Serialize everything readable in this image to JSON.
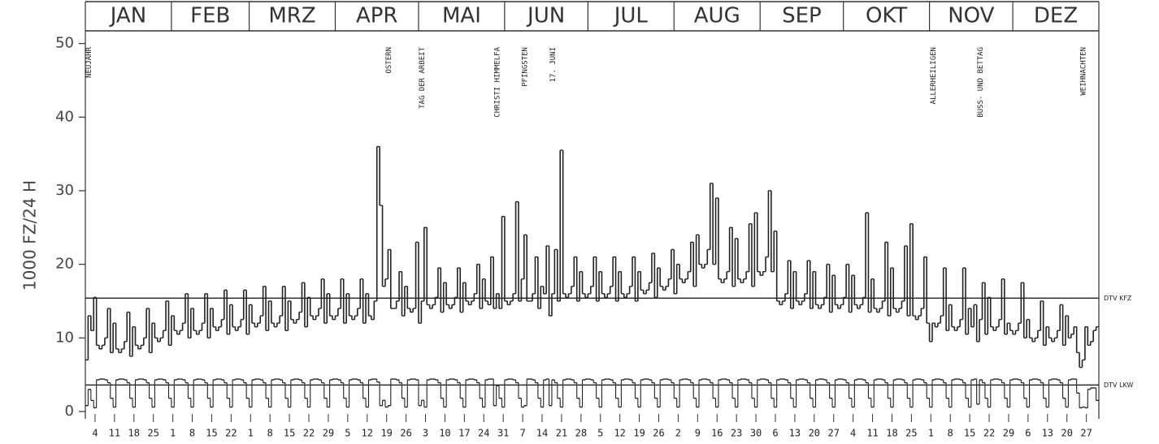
{
  "chart_data": {
    "type": "line",
    "step": true,
    "y_label": "1000 FZ/24 H",
    "xlim": [
      0,
      365
    ],
    "ylim": [
      -1,
      51.5
    ],
    "yticks": [
      0,
      10,
      20,
      30,
      40,
      50
    ],
    "xticks": [
      4,
      11,
      18,
      25,
      {
        "value": 32,
        "label": "1"
      },
      {
        "value": 39,
        "label": "8"
      },
      {
        "value": 46,
        "label": "15"
      },
      {
        "value": 53,
        "label": "22"
      },
      {
        "value": 60,
        "label": "1"
      },
      {
        "value": 67,
        "label": "8"
      },
      {
        "value": 74,
        "label": "15"
      },
      {
        "value": 81,
        "label": "22"
      },
      {
        "value": 88,
        "label": "29"
      },
      {
        "value": 95,
        "label": "5"
      },
      {
        "value": 102,
        "label": "12"
      },
      {
        "value": 109,
        "label": "19"
      },
      {
        "value": 116,
        "label": "26"
      },
      {
        "value": 123,
        "label": "3"
      },
      {
        "value": 130,
        "label": "10"
      },
      {
        "value": 137,
        "label": "17"
      },
      {
        "value": 144,
        "label": "24"
      },
      {
        "value": 151,
        "label": "31"
      },
      {
        "value": 158,
        "label": "7"
      },
      {
        "value": 165,
        "label": "14"
      },
      {
        "value": 172,
        "label": "21"
      },
      {
        "value": 179,
        "label": "28"
      },
      {
        "value": 186,
        "label": "5"
      },
      {
        "value": 193,
        "label": "12"
      },
      {
        "value": 200,
        "label": "19"
      },
      {
        "value": 207,
        "label": "26"
      },
      {
        "value": 214,
        "label": "2"
      },
      {
        "value": 221,
        "label": "9"
      },
      {
        "value": 228,
        "label": "16"
      },
      {
        "value": 235,
        "label": "23"
      },
      {
        "value": 242,
        "label": "30"
      },
      {
        "value": 249,
        "label": "6"
      },
      {
        "value": 256,
        "label": "13"
      },
      {
        "value": 263,
        "label": "20"
      },
      {
        "value": 270,
        "label": "27"
      },
      {
        "value": 277,
        "label": "4"
      },
      {
        "value": 284,
        "label": "11"
      },
      {
        "value": 291,
        "label": "18"
      },
      {
        "value": 298,
        "label": "25"
      },
      {
        "value": 305,
        "label": "1"
      },
      {
        "value": 312,
        "label": "8"
      },
      {
        "value": 319,
        "label": "15"
      },
      {
        "value": 326,
        "label": "22"
      },
      {
        "value": 333,
        "label": "29"
      },
      {
        "value": 340,
        "label": "6"
      },
      {
        "value": 347,
        "label": "13"
      },
      {
        "value": 354,
        "label": "20"
      },
      {
        "value": 361,
        "label": "27"
      }
    ],
    "months": [
      {
        "label": "JAN",
        "start": 0,
        "end": 31
      },
      {
        "label": "FEB",
        "start": 31,
        "end": 59
      },
      {
        "label": "MRZ",
        "start": 59,
        "end": 90
      },
      {
        "label": "APR",
        "start": 90,
        "end": 120
      },
      {
        "label": "MAI",
        "start": 120,
        "end": 151
      },
      {
        "label": "JUN",
        "start": 151,
        "end": 181
      },
      {
        "label": "JUL",
        "start": 181,
        "end": 212
      },
      {
        "label": "AUG",
        "start": 212,
        "end": 243
      },
      {
        "label": "SEP",
        "start": 243,
        "end": 273
      },
      {
        "label": "OKT",
        "start": 273,
        "end": 304
      },
      {
        "label": "NOV",
        "start": 304,
        "end": 334
      },
      {
        "label": "DEZ",
        "start": 334,
        "end": 365
      }
    ],
    "annotations": [
      {
        "text": "NEUJAHR",
        "x": 1
      },
      {
        "text": "OSTERN",
        "x": 109
      },
      {
        "text": "TAG DER ARBEIT",
        "x": 121
      },
      {
        "text": "CHRISTI HIMMELFA",
        "x": 148
      },
      {
        "text": "PFINGSTEN",
        "x": 158
      },
      {
        "text": "17. JUNI",
        "x": 168
      },
      {
        "text": "ALLERHEILIGEN",
        "x": 305
      },
      {
        "text": "BUSS- UND BETTAG",
        "x": 322
      },
      {
        "text": "WEIHNACHTEN",
        "x": 359
      }
    ],
    "reference_lines": [
      {
        "label": "DTV KFZ",
        "value": 15.4
      },
      {
        "label": "DTV LKW",
        "value": 3.6
      }
    ],
    "x": [
      1,
      2,
      3,
      4,
      5,
      6,
      7,
      8,
      9,
      10,
      11,
      12,
      13,
      14,
      15,
      16,
      17,
      18,
      19,
      20,
      21,
      22,
      23,
      24,
      25,
      26,
      27,
      28,
      29,
      30,
      31,
      32,
      33,
      34,
      35,
      36,
      37,
      38,
      39,
      40,
      41,
      42,
      43,
      44,
      45,
      46,
      47,
      48,
      49,
      50,
      51,
      52,
      53,
      54,
      55,
      56,
      57,
      58,
      59,
      60,
      61,
      62,
      63,
      64,
      65,
      66,
      67,
      68,
      69,
      70,
      71,
      72,
      73,
      74,
      75,
      76,
      77,
      78,
      79,
      80,
      81,
      82,
      83,
      84,
      85,
      86,
      87,
      88,
      89,
      90,
      91,
      92,
      93,
      94,
      95,
      96,
      97,
      98,
      99,
      100,
      101,
      102,
      103,
      104,
      105,
      106,
      107,
      108,
      109,
      110,
      111,
      112,
      113,
      114,
      115,
      116,
      117,
      118,
      119,
      120,
      121,
      122,
      123,
      124,
      125,
      126,
      127,
      128,
      129,
      130,
      131,
      132,
      133,
      134,
      135,
      136,
      137,
      138,
      139,
      140,
      141,
      142,
      143,
      144,
      145,
      146,
      147,
      148,
      149,
      150,
      151,
      152,
      153,
      154,
      155,
      156,
      157,
      158,
      159,
      160,
      161,
      162,
      163,
      164,
      165,
      166,
      167,
      168,
      169,
      170,
      171,
      172,
      173,
      174,
      175,
      176,
      177,
      178,
      179,
      180,
      181,
      182,
      183,
      184,
      185,
      186,
      187,
      188,
      189,
      190,
      191,
      192,
      193,
      194,
      195,
      196,
      197,
      198,
      199,
      200,
      201,
      202,
      203,
      204,
      205,
      206,
      207,
      208,
      209,
      210,
      211,
      212,
      213,
      214,
      215,
      216,
      217,
      218,
      219,
      220,
      221,
      222,
      223,
      224,
      225,
      226,
      227,
      228,
      229,
      230,
      231,
      232,
      233,
      234,
      235,
      236,
      237,
      238,
      239,
      240,
      241,
      242,
      243,
      244,
      245,
      246,
      247,
      248,
      249,
      250,
      251,
      252,
      253,
      254,
      255,
      256,
      257,
      258,
      259,
      260,
      261,
      262,
      263,
      264,
      265,
      266,
      267,
      268,
      269,
      270,
      271,
      272,
      273,
      274,
      275,
      276,
      277,
      278,
      279,
      280,
      281,
      282,
      283,
      284,
      285,
      286,
      287,
      288,
      289,
      290,
      291,
      292,
      293,
      294,
      295,
      296,
      297,
      298,
      299,
      300,
      301,
      302,
      303,
      304,
      305,
      306,
      307,
      308,
      309,
      310,
      311,
      312,
      313,
      314,
      315,
      316,
      317,
      318,
      319,
      320,
      321,
      322,
      323,
      324,
      325,
      326,
      327,
      328,
      329,
      330,
      331,
      332,
      333,
      334,
      335,
      336,
      337,
      338,
      339,
      340,
      341,
      342,
      343,
      344,
      345,
      346,
      347,
      348,
      349,
      350,
      351,
      352,
      353,
      354,
      355,
      356,
      357,
      358,
      359,
      360,
      361,
      362,
      363,
      364,
      365
    ],
    "series": [
      {
        "name": "KFZ",
        "color": "#222222",
        "values": [
          7,
          13,
          11,
          15.5,
          9,
          8.5,
          9,
          10,
          14,
          8,
          12,
          8.5,
          8,
          8.5,
          9.5,
          13.5,
          7.5,
          11.5,
          9,
          8.5,
          9,
          10,
          14,
          8,
          12,
          10,
          9.5,
          10,
          11,
          15,
          9,
          13,
          11,
          10.5,
          11,
          12,
          16,
          10,
          14,
          11,
          10.5,
          11,
          12,
          16,
          10,
          14,
          11.5,
          11,
          11.5,
          12.5,
          16.5,
          10.5,
          14.5,
          11.5,
          11,
          11.5,
          12.5,
          16.5,
          10.5,
          14.5,
          12,
          11.5,
          12,
          13,
          17,
          11,
          15,
          12,
          11.5,
          12,
          13,
          17,
          11,
          15,
          12.5,
          12,
          12.5,
          13.5,
          17.5,
          11.5,
          15.5,
          13,
          12.5,
          13,
          14,
          18,
          12,
          16,
          13,
          12.5,
          13,
          14,
          18,
          12,
          16,
          13,
          12.5,
          13,
          14,
          18,
          12,
          16,
          13,
          12.5,
          15,
          36,
          28,
          17,
          18,
          22,
          14,
          14,
          15,
          19,
          13,
          17,
          14,
          13.5,
          14,
          23,
          12,
          15,
          25,
          14.5,
          14,
          14.5,
          15.5,
          19.5,
          13.5,
          17.5,
          14.5,
          14,
          14.5,
          15.5,
          19.5,
          13.5,
          17.5,
          15,
          14.5,
          15,
          16,
          20,
          14,
          18,
          15,
          14.5,
          21,
          14,
          16,
          14,
          26.5,
          15,
          14.5,
          15,
          16,
          28.5,
          15,
          18,
          24,
          15,
          15,
          16,
          21,
          14,
          17,
          16,
          22.5,
          13,
          16,
          22,
          15,
          35.5,
          16,
          15.5,
          16,
          17,
          21,
          15,
          19,
          16,
          15.5,
          16,
          17,
          21,
          15,
          19,
          16,
          15.5,
          16,
          17,
          21,
          15,
          19,
          16,
          15.5,
          16,
          17,
          21,
          15,
          19,
          16.5,
          16,
          16.5,
          17.5,
          21.5,
          15.5,
          19.5,
          17,
          16.5,
          17,
          18,
          22,
          16,
          20,
          18,
          17.5,
          18,
          19,
          23,
          17,
          24,
          20,
          19.5,
          20,
          22,
          31,
          20,
          29,
          18,
          17.5,
          18,
          19,
          25,
          17,
          23.5,
          18,
          17.5,
          18,
          19,
          25.5,
          17,
          27,
          19,
          18.5,
          19,
          21,
          30,
          19,
          24.5,
          15,
          14.5,
          15,
          16,
          20.5,
          14,
          19,
          15,
          14.5,
          15,
          16,
          20.5,
          14,
          19,
          14.5,
          14,
          14.5,
          15.5,
          20,
          13.5,
          18.5,
          14.5,
          14,
          14.5,
          15.5,
          20,
          13.5,
          18.5,
          14.5,
          14,
          14.5,
          15.5,
          27,
          13.5,
          18,
          14,
          13.5,
          14,
          15,
          23,
          13,
          19.5,
          14,
          13.5,
          14,
          15,
          22.5,
          13,
          25.5,
          13,
          12.5,
          13,
          14,
          21,
          12,
          9.5,
          12,
          11.5,
          12,
          13,
          19.5,
          11,
          14.5,
          11.5,
          11,
          11.5,
          12.5,
          19.5,
          10.5,
          14,
          11.5,
          14.5,
          9.5,
          12.5,
          17.5,
          10.5,
          15.5,
          11.5,
          11,
          11.5,
          12.5,
          18,
          10.5,
          12,
          11,
          10.5,
          11,
          12,
          17.5,
          10,
          12.5,
          10,
          9.5,
          10,
          11,
          15,
          9,
          11.5,
          10,
          9.5,
          10,
          11,
          14.5,
          9,
          13,
          10,
          10.5,
          11.5,
          8,
          6,
          7,
          11.5,
          9,
          9.5,
          11,
          11.5
        ]
      },
      {
        "name": "LKW",
        "color": "#222222",
        "values": [
          0.8,
          3,
          1.5,
          0.5,
          4.3,
          4.4,
          4.4,
          4.3,
          3.9,
          1.8,
          0.6,
          4.3,
          4.4,
          4.4,
          4.3,
          3.9,
          1.8,
          0.6,
          4.3,
          4.4,
          4.4,
          4.3,
          3.9,
          1.8,
          0.6,
          4.3,
          4.4,
          4.4,
          4.3,
          3.9,
          1.8,
          0.6,
          4.3,
          4.4,
          4.4,
          4.3,
          3.9,
          1.8,
          0.6,
          4.3,
          4.4,
          4.4,
          4.3,
          3.9,
          1.8,
          0.6,
          4.3,
          4.4,
          4.4,
          4.3,
          3.9,
          1.8,
          0.6,
          4.3,
          4.4,
          4.4,
          4.3,
          3.9,
          1.8,
          0.6,
          4.3,
          4.4,
          4.4,
          4.3,
          3.9,
          1.8,
          0.6,
          4.3,
          4.4,
          4.4,
          4.3,
          3.9,
          1.8,
          0.6,
          4.3,
          4.4,
          4.4,
          4.3,
          3.9,
          1.8,
          0.6,
          4.3,
          4.4,
          4.4,
          4.3,
          3.9,
          1.8,
          0.6,
          4.3,
          4.4,
          4.4,
          4.3,
          3.9,
          1.8,
          0.6,
          4.3,
          4.4,
          4.4,
          4.3,
          3.9,
          1.8,
          0.6,
          4.3,
          4.4,
          4.4,
          4.0,
          0.8,
          1.5,
          0.6,
          0.8,
          4.4,
          4.4,
          4.3,
          3.9,
          1.8,
          0.6,
          4.3,
          4.4,
          4.4,
          4.3,
          0.8,
          1.5,
          0.6,
          4.3,
          4.4,
          4.4,
          4.3,
          3.9,
          1.8,
          0.6,
          4.3,
          4.4,
          4.4,
          4.3,
          3.9,
          1.8,
          0.6,
          4.3,
          4.4,
          4.4,
          4.3,
          3.9,
          1.8,
          0.6,
          4.3,
          4.4,
          4.4,
          0.8,
          3.5,
          1.8,
          0.6,
          4.3,
          4.4,
          4.4,
          4.3,
          3.9,
          1.8,
          0.6,
          0.8,
          4.4,
          4.4,
          4.3,
          3.9,
          1.8,
          0.6,
          4.3,
          4.4,
          0.8,
          4.3,
          3.9,
          1.8,
          0.6,
          4.3,
          4.4,
          4.4,
          4.3,
          3.9,
          1.8,
          0.6,
          4.3,
          4.4,
          4.4,
          4.3,
          3.9,
          1.8,
          0.6,
          4.3,
          4.4,
          4.4,
          4.3,
          3.9,
          1.8,
          0.6,
          4.3,
          4.4,
          4.4,
          4.3,
          3.9,
          1.8,
          0.6,
          4.3,
          4.4,
          4.4,
          4.3,
          3.9,
          1.8,
          0.6,
          4.3,
          4.4,
          4.4,
          4.3,
          3.9,
          1.8,
          0.6,
          4.3,
          4.4,
          4.4,
          4.3,
          3.9,
          1.8,
          0.6,
          4.3,
          4.4,
          4.4,
          4.3,
          3.9,
          1.8,
          0.6,
          4.3,
          4.4,
          4.4,
          4.3,
          3.9,
          1.8,
          0.6,
          4.3,
          4.4,
          4.4,
          4.3,
          3.9,
          1.8,
          0.6,
          4.3,
          4.4,
          4.4,
          4.3,
          3.9,
          1.8,
          0.6,
          4.3,
          4.4,
          4.4,
          4.3,
          3.9,
          1.8,
          0.6,
          4.3,
          4.4,
          4.4,
          4.3,
          3.9,
          1.8,
          0.6,
          4.3,
          4.4,
          4.4,
          4.3,
          3.9,
          1.8,
          0.6,
          4.3,
          4.4,
          4.4,
          4.3,
          3.9,
          1.8,
          0.6,
          4.3,
          4.4,
          4.4,
          4.3,
          3.9,
          1.8,
          0.6,
          4.3,
          4.4,
          4.4,
          4.3,
          3.9,
          1.8,
          0.6,
          4.3,
          4.4,
          4.4,
          4.3,
          3.9,
          1.8,
          0.6,
          4.3,
          4.4,
          4.4,
          4.3,
          3.9,
          1.8,
          0.6,
          4.3,
          4.4,
          4.4,
          4.3,
          3.9,
          1.8,
          0.6,
          4.3,
          4.4,
          4.4,
          4.3,
          3.9,
          1.8,
          0.6,
          4.3,
          4.4,
          1.0,
          4.3,
          3.9,
          1.8,
          0.6,
          4.3,
          4.4,
          4.4,
          4.3,
          3.9,
          1.8,
          0.6,
          4.3,
          4.4,
          4.4,
          4.3,
          3.9,
          1.8,
          0.6,
          4.3,
          4.4,
          4.4,
          4.3,
          3.9,
          1.8,
          0.6,
          4.3,
          4.4,
          4.4,
          4.3,
          3.9,
          1.8,
          0.6,
          4.3,
          4.4,
          4.4,
          2.5,
          0.5,
          0.6,
          0.5,
          3,
          3.2,
          3.2,
          1.5
        ]
      }
    ]
  }
}
